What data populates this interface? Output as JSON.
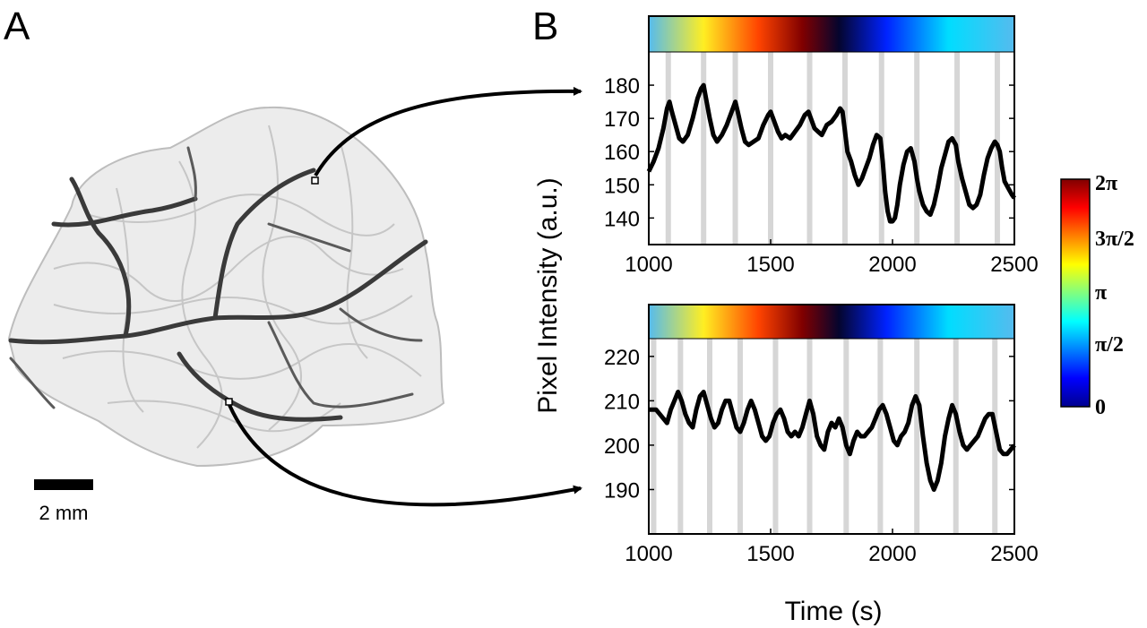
{
  "panels": {
    "a": "A",
    "b": "B"
  },
  "scale_bar": {
    "label": "2 mm"
  },
  "colorbar": {
    "ticks": [
      "0",
      "π/2",
      "π",
      "3π/2",
      "2π"
    ]
  },
  "colors": {
    "trace": "#000000",
    "stripe": "#d6d6d6"
  },
  "chart_data": [
    {
      "type": "line",
      "ylabel": "Pixel Intensity (a.u.)",
      "xlabel": "Time (s)",
      "xlim": [
        1000,
        2500
      ],
      "ylim": [
        132,
        190
      ],
      "xticks": [
        1000,
        1500,
        2000,
        2500
      ],
      "yticks": [
        140,
        150,
        160,
        170,
        180
      ],
      "peak_stripes": [
        1080,
        1225,
        1355,
        1500,
        1660,
        1805,
        1955,
        2100,
        2265,
        2430
      ],
      "series": [
        {
          "x": [
            1000,
            1020,
            1040,
            1060,
            1075,
            1085,
            1095,
            1110,
            1125,
            1140,
            1160,
            1180,
            1200,
            1215,
            1225,
            1235,
            1250,
            1265,
            1280,
            1300,
            1320,
            1340,
            1355,
            1365,
            1380,
            1395,
            1410,
            1430,
            1450,
            1470,
            1490,
            1500,
            1515,
            1530,
            1545,
            1560,
            1580,
            1600,
            1620,
            1640,
            1655,
            1665,
            1680,
            1695,
            1710,
            1730,
            1750,
            1770,
            1785,
            1795,
            1805,
            1815,
            1830,
            1845,
            1860,
            1875,
            1890,
            1905,
            1920,
            1935,
            1950,
            1960,
            1970,
            1980,
            1990,
            2000,
            2010,
            2020,
            2030,
            2045,
            2060,
            2075,
            2090,
            2100,
            2110,
            2125,
            2140,
            2155,
            2170,
            2185,
            2200,
            2215,
            2230,
            2245,
            2260,
            2270,
            2285,
            2300,
            2315,
            2330,
            2345,
            2360,
            2375,
            2390,
            2405,
            2420,
            2430,
            2440,
            2450,
            2460,
            2475,
            2490,
            2500
          ],
          "y": [
            154,
            157,
            161,
            167,
            173,
            175,
            172,
            168,
            164,
            163,
            165,
            170,
            176,
            179,
            180,
            176,
            170,
            165,
            163,
            165,
            168,
            172,
            175,
            172,
            167,
            163,
            162,
            163,
            164,
            168,
            171,
            172,
            169,
            166,
            164,
            165,
            164,
            166,
            168,
            171,
            172,
            170,
            167,
            166,
            165,
            168,
            169,
            171,
            173,
            172,
            166,
            160,
            157,
            153,
            150,
            152,
            155,
            158,
            162,
            165,
            164,
            157,
            148,
            142,
            139,
            139,
            140,
            144,
            150,
            156,
            160,
            161,
            157,
            152,
            148,
            144,
            142,
            141,
            144,
            149,
            155,
            159,
            163,
            164,
            162,
            157,
            152,
            148,
            144,
            143,
            144,
            147,
            153,
            158,
            161,
            163,
            162,
            160,
            155,
            151,
            149,
            147,
            146
          ]
        }
      ]
    },
    {
      "type": "line",
      "ylabel": "",
      "xlabel": "Time (s)",
      "xlim": [
        1000,
        2500
      ],
      "ylim": [
        180,
        224
      ],
      "xticks": [
        1000,
        1500,
        2000,
        2500
      ],
      "yticks": [
        190,
        200,
        210,
        220
      ],
      "peak_stripes": [
        1020,
        1130,
        1250,
        1375,
        1520,
        1660,
        1810,
        1950,
        2100,
        2260,
        2420
      ],
      "series": [
        {
          "x": [
            1000,
            1015,
            1030,
            1045,
            1060,
            1075,
            1090,
            1105,
            1120,
            1135,
            1150,
            1165,
            1180,
            1195,
            1210,
            1225,
            1240,
            1255,
            1270,
            1285,
            1300,
            1315,
            1330,
            1345,
            1360,
            1375,
            1390,
            1405,
            1420,
            1435,
            1450,
            1465,
            1480,
            1495,
            1510,
            1525,
            1540,
            1555,
            1570,
            1585,
            1600,
            1615,
            1630,
            1645,
            1660,
            1675,
            1690,
            1705,
            1720,
            1735,
            1750,
            1765,
            1780,
            1795,
            1810,
            1825,
            1840,
            1855,
            1870,
            1885,
            1900,
            1915,
            1930,
            1945,
            1960,
            1975,
            1990,
            2005,
            2020,
            2035,
            2050,
            2065,
            2080,
            2095,
            2110,
            2125,
            2140,
            2155,
            2170,
            2185,
            2200,
            2215,
            2230,
            2245,
            2260,
            2275,
            2290,
            2305,
            2320,
            2335,
            2350,
            2365,
            2380,
            2395,
            2410,
            2425,
            2440,
            2455,
            2470,
            2485,
            2500
          ],
          "y": [
            208,
            208,
            208,
            207,
            206,
            205,
            208,
            210,
            212,
            210,
            207,
            205,
            204,
            208,
            211,
            212,
            209,
            206,
            204,
            205,
            208,
            210,
            210,
            207,
            204,
            203,
            205,
            208,
            210,
            208,
            205,
            202,
            201,
            202,
            205,
            207,
            208,
            206,
            203,
            202,
            203,
            202,
            204,
            207,
            210,
            207,
            202,
            200,
            199,
            203,
            205,
            204,
            206,
            204,
            200,
            198,
            201,
            203,
            202,
            202,
            203,
            204,
            206,
            208,
            209,
            207,
            204,
            201,
            200,
            202,
            203,
            205,
            209,
            211,
            209,
            202,
            196,
            192,
            190,
            192,
            196,
            202,
            206,
            209,
            207,
            203,
            200,
            199,
            200,
            201,
            202,
            204,
            206,
            207,
            207,
            203,
            199,
            198,
            198,
            199,
            200
          ]
        }
      ]
    }
  ]
}
